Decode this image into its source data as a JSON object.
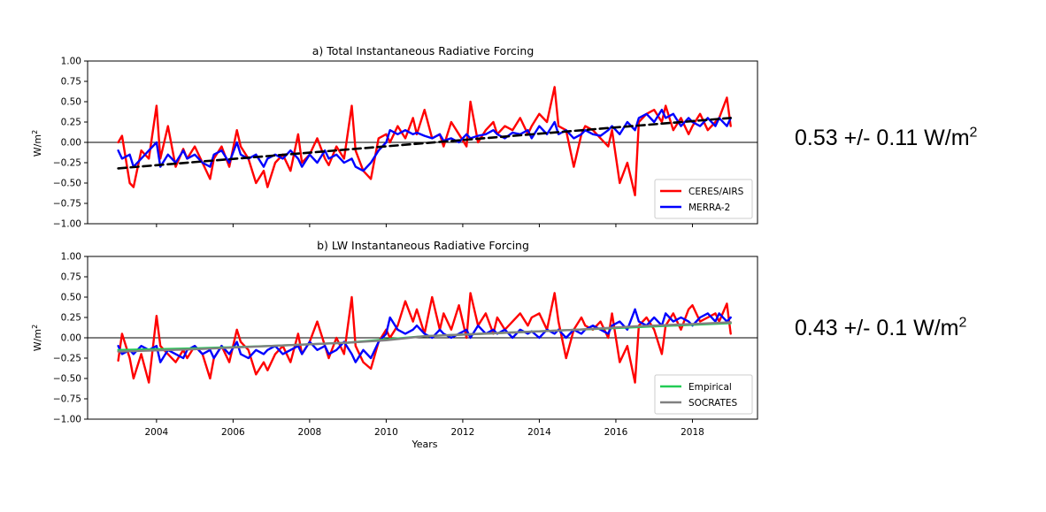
{
  "annotations": {
    "top": {
      "text": "0.53 +/- 0.11 W/m",
      "sup": "2"
    },
    "bottom": {
      "text": "0.43 +/- 0.1 W/m",
      "sup": "2"
    }
  },
  "chart_data": [
    {
      "type": "line",
      "title": "a) Total Instantaneous Radiative Forcing",
      "xlabel": "",
      "ylabel": "W/m²",
      "xlim": [
        2002.2,
        2019.7
      ],
      "ylim": [
        -1.0,
        1.0
      ],
      "xticks": [
        "2004",
        "2006",
        "2008",
        "2010",
        "2012",
        "2014",
        "2016",
        "2018"
      ],
      "yticks": [
        "1.00",
        "0.75",
        "0.50",
        "0.25",
        "0.00",
        "−0.25",
        "−0.50",
        "−0.75",
        "−1.00"
      ],
      "legend_position": "lower-right",
      "zero_line": true,
      "series": [
        {
          "name": "CERES/AIRS",
          "color": "#ff0000",
          "x": [
            2003.0,
            2003.1,
            2003.3,
            2003.4,
            2003.6,
            2003.8,
            2004.0,
            2004.1,
            2004.3,
            2004.5,
            2004.7,
            2004.8,
            2005.0,
            2005.2,
            2005.4,
            2005.5,
            2005.7,
            2005.9,
            2006.1,
            2006.2,
            2006.4,
            2006.6,
            2006.8,
            2006.9,
            2007.1,
            2007.3,
            2007.5,
            2007.7,
            2007.8,
            2008.0,
            2008.2,
            2008.4,
            2008.5,
            2008.7,
            2008.9,
            2009.1,
            2009.2,
            2009.4,
            2009.6,
            2009.8,
            2010.0,
            2010.1,
            2010.3,
            2010.5,
            2010.7,
            2010.8,
            2011.0,
            2011.2,
            2011.4,
            2011.5,
            2011.7,
            2011.9,
            2012.1,
            2012.2,
            2012.4,
            2012.6,
            2012.8,
            2012.9,
            2013.1,
            2013.3,
            2013.5,
            2013.7,
            2013.8,
            2014.0,
            2014.2,
            2014.4,
            2014.5,
            2014.7,
            2014.9,
            2015.1,
            2015.2,
            2015.4,
            2015.6,
            2015.8,
            2015.9,
            2016.1,
            2016.3,
            2016.5,
            2016.6,
            2016.8,
            2017.0,
            2017.2,
            2017.3,
            2017.5,
            2017.7,
            2017.9,
            2018.0,
            2018.2,
            2018.4,
            2018.6,
            2018.7,
            2018.9,
            2019.0
          ],
          "y": [
            0.0,
            0.08,
            -0.5,
            -0.55,
            -0.1,
            -0.2,
            0.45,
            -0.2,
            0.2,
            -0.3,
            -0.08,
            -0.2,
            -0.05,
            -0.25,
            -0.45,
            -0.2,
            -0.05,
            -0.3,
            0.15,
            -0.05,
            -0.2,
            -0.5,
            -0.35,
            -0.55,
            -0.25,
            -0.15,
            -0.35,
            0.1,
            -0.25,
            -0.15,
            0.05,
            -0.2,
            -0.28,
            -0.05,
            -0.2,
            0.45,
            -0.1,
            -0.35,
            -0.45,
            0.05,
            0.1,
            0.0,
            0.2,
            0.05,
            0.3,
            0.1,
            0.4,
            0.05,
            0.1,
            -0.05,
            0.25,
            0.1,
            -0.05,
            0.5,
            0.0,
            0.15,
            0.25,
            0.1,
            0.2,
            0.15,
            0.3,
            0.1,
            0.2,
            0.35,
            0.25,
            0.68,
            0.2,
            0.15,
            -0.3,
            0.1,
            0.2,
            0.15,
            0.05,
            -0.05,
            0.15,
            -0.5,
            -0.25,
            -0.65,
            0.25,
            0.35,
            0.4,
            0.25,
            0.45,
            0.15,
            0.3,
            0.1,
            0.2,
            0.35,
            0.15,
            0.25,
            0.3,
            0.55,
            0.2
          ]
        },
        {
          "name": "MERRA-2",
          "color": "#0000ff",
          "x": [
            2003.0,
            2003.1,
            2003.3,
            2003.4,
            2003.6,
            2003.8,
            2004.0,
            2004.1,
            2004.3,
            2004.5,
            2004.7,
            2004.8,
            2005.0,
            2005.2,
            2005.4,
            2005.5,
            2005.7,
            2005.9,
            2006.1,
            2006.2,
            2006.4,
            2006.6,
            2006.8,
            2006.9,
            2007.1,
            2007.3,
            2007.5,
            2007.7,
            2007.8,
            2008.0,
            2008.2,
            2008.4,
            2008.5,
            2008.7,
            2008.9,
            2009.1,
            2009.2,
            2009.4,
            2009.6,
            2009.8,
            2010.0,
            2010.1,
            2010.3,
            2010.5,
            2010.7,
            2010.8,
            2011.0,
            2011.2,
            2011.4,
            2011.5,
            2011.7,
            2011.9,
            2012.1,
            2012.2,
            2012.4,
            2012.6,
            2012.8,
            2012.9,
            2013.1,
            2013.3,
            2013.5,
            2013.7,
            2013.8,
            2014.0,
            2014.2,
            2014.4,
            2014.5,
            2014.7,
            2014.9,
            2015.1,
            2015.2,
            2015.4,
            2015.6,
            2015.8,
            2015.9,
            2016.1,
            2016.3,
            2016.5,
            2016.6,
            2016.8,
            2017.0,
            2017.2,
            2017.3,
            2017.5,
            2017.7,
            2017.9,
            2018.0,
            2018.2,
            2018.4,
            2018.6,
            2018.7,
            2018.9,
            2019.0
          ],
          "y": [
            -0.1,
            -0.2,
            -0.15,
            -0.3,
            -0.2,
            -0.1,
            0.0,
            -0.3,
            -0.15,
            -0.25,
            -0.1,
            -0.2,
            -0.15,
            -0.25,
            -0.3,
            -0.15,
            -0.1,
            -0.25,
            0.0,
            -0.15,
            -0.2,
            -0.15,
            -0.3,
            -0.2,
            -0.15,
            -0.2,
            -0.1,
            -0.2,
            -0.3,
            -0.15,
            -0.25,
            -0.1,
            -0.2,
            -0.15,
            -0.25,
            -0.2,
            -0.3,
            -0.35,
            -0.25,
            -0.1,
            0.0,
            0.15,
            0.1,
            0.15,
            0.1,
            0.12,
            0.08,
            0.05,
            0.1,
            0.02,
            0.05,
            0.0,
            0.1,
            0.05,
            0.08,
            0.1,
            0.15,
            0.1,
            0.05,
            0.12,
            0.1,
            0.15,
            0.05,
            0.2,
            0.1,
            0.25,
            0.1,
            0.15,
            0.05,
            0.1,
            0.15,
            0.1,
            0.08,
            0.15,
            0.2,
            0.1,
            0.25,
            0.15,
            0.3,
            0.35,
            0.25,
            0.4,
            0.3,
            0.35,
            0.2,
            0.3,
            0.25,
            0.2,
            0.3,
            0.2,
            0.3,
            0.2,
            0.3
          ]
        },
        {
          "name": "",
          "color": "#000000",
          "dashed": true,
          "x": [
            2003.0,
            2019.0
          ],
          "y": [
            -0.32,
            0.3
          ]
        }
      ]
    },
    {
      "type": "line",
      "title": "b) LW Instantaneous Radiative Forcing",
      "xlabel": "Years",
      "ylabel": "W/m²",
      "xlim": [
        2002.2,
        2019.7
      ],
      "ylim": [
        -1.0,
        1.0
      ],
      "xticks": [
        "2004",
        "2006",
        "2008",
        "2010",
        "2012",
        "2014",
        "2016",
        "2018"
      ],
      "yticks": [
        "1.00",
        "0.75",
        "0.50",
        "0.25",
        "0.00",
        "−0.25",
        "−0.50",
        "−0.75",
        "−1.00"
      ],
      "legend_position": "lower-right",
      "zero_line": true,
      "series": [
        {
          "name": "",
          "color": "#ff0000",
          "x": [
            2003.0,
            2003.1,
            2003.3,
            2003.4,
            2003.6,
            2003.8,
            2004.0,
            2004.1,
            2004.3,
            2004.5,
            2004.7,
            2004.8,
            2005.0,
            2005.2,
            2005.4,
            2005.5,
            2005.7,
            2005.9,
            2006.1,
            2006.2,
            2006.4,
            2006.6,
            2006.8,
            2006.9,
            2007.1,
            2007.3,
            2007.5,
            2007.7,
            2007.8,
            2008.0,
            2008.2,
            2008.4,
            2008.5,
            2008.7,
            2008.9,
            2009.1,
            2009.2,
            2009.4,
            2009.6,
            2009.8,
            2010.0,
            2010.1,
            2010.3,
            2010.5,
            2010.7,
            2010.8,
            2011.0,
            2011.2,
            2011.4,
            2011.5,
            2011.7,
            2011.9,
            2012.1,
            2012.2,
            2012.4,
            2012.6,
            2012.8,
            2012.9,
            2013.1,
            2013.3,
            2013.5,
            2013.7,
            2013.8,
            2014.0,
            2014.2,
            2014.4,
            2014.5,
            2014.7,
            2014.9,
            2015.1,
            2015.2,
            2015.4,
            2015.6,
            2015.8,
            2015.9,
            2016.1,
            2016.3,
            2016.5,
            2016.6,
            2016.8,
            2017.0,
            2017.2,
            2017.3,
            2017.5,
            2017.7,
            2017.9,
            2018.0,
            2018.2,
            2018.4,
            2018.6,
            2018.7,
            2018.9,
            2019.0
          ],
          "y": [
            -0.28,
            0.05,
            -0.25,
            -0.5,
            -0.2,
            -0.55,
            0.27,
            -0.1,
            -0.2,
            -0.3,
            -0.15,
            -0.25,
            -0.1,
            -0.2,
            -0.5,
            -0.25,
            -0.1,
            -0.3,
            0.1,
            -0.05,
            -0.15,
            -0.45,
            -0.3,
            -0.4,
            -0.2,
            -0.1,
            -0.3,
            0.05,
            -0.2,
            -0.05,
            0.2,
            -0.1,
            -0.25,
            0.0,
            -0.2,
            0.5,
            -0.1,
            -0.3,
            -0.38,
            -0.05,
            0.1,
            0.0,
            0.15,
            0.45,
            0.2,
            0.35,
            0.05,
            0.5,
            0.1,
            0.3,
            0.1,
            0.4,
            0.0,
            0.55,
            0.15,
            0.3,
            0.05,
            0.25,
            0.1,
            0.2,
            0.3,
            0.15,
            0.25,
            0.3,
            0.1,
            0.55,
            0.2,
            -0.25,
            0.1,
            0.25,
            0.15,
            0.1,
            0.2,
            0.0,
            0.3,
            -0.3,
            -0.1,
            -0.55,
            0.15,
            0.25,
            0.1,
            -0.2,
            0.15,
            0.3,
            0.1,
            0.35,
            0.4,
            0.2,
            0.25,
            0.3,
            0.2,
            0.42,
            0.05
          ]
        },
        {
          "name": "",
          "color": "#0000ff",
          "x": [
            2003.0,
            2003.1,
            2003.3,
            2003.4,
            2003.6,
            2003.8,
            2004.0,
            2004.1,
            2004.3,
            2004.5,
            2004.7,
            2004.8,
            2005.0,
            2005.2,
            2005.4,
            2005.5,
            2005.7,
            2005.9,
            2006.1,
            2006.2,
            2006.4,
            2006.6,
            2006.8,
            2006.9,
            2007.1,
            2007.3,
            2007.5,
            2007.7,
            2007.8,
            2008.0,
            2008.2,
            2008.4,
            2008.5,
            2008.7,
            2008.9,
            2009.1,
            2009.2,
            2009.4,
            2009.6,
            2009.8,
            2010.0,
            2010.1,
            2010.3,
            2010.5,
            2010.7,
            2010.8,
            2011.0,
            2011.2,
            2011.4,
            2011.5,
            2011.7,
            2011.9,
            2012.1,
            2012.2,
            2012.4,
            2012.6,
            2012.8,
            2012.9,
            2013.1,
            2013.3,
            2013.5,
            2013.7,
            2013.8,
            2014.0,
            2014.2,
            2014.4,
            2014.5,
            2014.7,
            2014.9,
            2015.1,
            2015.2,
            2015.4,
            2015.6,
            2015.8,
            2015.9,
            2016.1,
            2016.3,
            2016.5,
            2016.6,
            2016.8,
            2017.0,
            2017.2,
            2017.3,
            2017.5,
            2017.7,
            2017.9,
            2018.0,
            2018.2,
            2018.4,
            2018.6,
            2018.7,
            2018.9,
            2019.0
          ],
          "y": [
            -0.1,
            -0.2,
            -0.15,
            -0.2,
            -0.1,
            -0.15,
            -0.1,
            -0.3,
            -0.15,
            -0.2,
            -0.25,
            -0.15,
            -0.1,
            -0.2,
            -0.15,
            -0.25,
            -0.1,
            -0.2,
            -0.05,
            -0.2,
            -0.25,
            -0.15,
            -0.2,
            -0.15,
            -0.1,
            -0.2,
            -0.15,
            -0.1,
            -0.2,
            -0.05,
            -0.15,
            -0.1,
            -0.2,
            -0.15,
            -0.05,
            -0.2,
            -0.3,
            -0.15,
            -0.25,
            -0.05,
            0.05,
            0.25,
            0.1,
            0.05,
            0.1,
            0.15,
            0.05,
            0.0,
            0.1,
            0.05,
            0.0,
            0.05,
            0.1,
            0.0,
            0.15,
            0.05,
            0.1,
            0.05,
            0.1,
            0.0,
            0.1,
            0.05,
            0.08,
            0.0,
            0.1,
            0.05,
            0.1,
            0.0,
            0.1,
            0.05,
            0.1,
            0.15,
            0.1,
            0.05,
            0.15,
            0.2,
            0.1,
            0.35,
            0.2,
            0.15,
            0.25,
            0.15,
            0.3,
            0.2,
            0.25,
            0.2,
            0.15,
            0.25,
            0.3,
            0.2,
            0.3,
            0.2,
            0.25
          ]
        },
        {
          "name": "Empirical",
          "color": "#22cc55",
          "x": [
            2003.0,
            2005.0,
            2007.0,
            2009.0,
            2010.0,
            2011.0,
            2013.0,
            2015.0,
            2016.5,
            2018.0,
            2019.0
          ],
          "y": [
            -0.15,
            -0.13,
            -0.1,
            -0.06,
            -0.02,
            0.02,
            0.06,
            0.1,
            0.13,
            0.16,
            0.18
          ]
        },
        {
          "name": "SOCRATES",
          "color": "#808080",
          "x": [
            2003.0,
            2005.0,
            2007.0,
            2009.0,
            2010.0,
            2011.0,
            2013.0,
            2015.0,
            2016.5,
            2018.0,
            2019.0
          ],
          "y": [
            -0.17,
            -0.14,
            -0.1,
            -0.06,
            -0.03,
            0.02,
            0.06,
            0.1,
            0.14,
            0.17,
            0.19
          ]
        }
      ]
    }
  ]
}
